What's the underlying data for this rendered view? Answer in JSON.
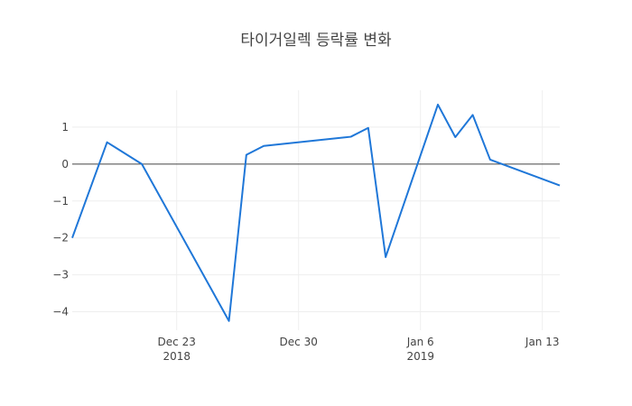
{
  "chart_data": {
    "type": "line",
    "title": "타이거일렉 등락률 변화",
    "x_axis": {
      "kind": "date",
      "range": [
        "2018-12-17",
        "2019-01-14"
      ],
      "ticks": [
        {
          "date": "2018-12-23",
          "label": "Dec 23",
          "sublabel": "2018"
        },
        {
          "date": "2018-12-30",
          "label": "Dec 30",
          "sublabel": ""
        },
        {
          "date": "2019-01-06",
          "label": "Jan 6",
          "sublabel": "2019"
        },
        {
          "date": "2019-01-13",
          "label": "Jan 13",
          "sublabel": ""
        }
      ]
    },
    "y_axis": {
      "range": [
        -4.5,
        2.0
      ],
      "ticks": [
        {
          "value": 1,
          "label": "1"
        },
        {
          "value": 0,
          "label": "0"
        },
        {
          "value": -1,
          "label": "−1"
        },
        {
          "value": -2,
          "label": "−2"
        },
        {
          "value": -3,
          "label": "−3"
        },
        {
          "value": -4,
          "label": "−4"
        }
      ],
      "zeroline": true
    },
    "grid": true,
    "series": [
      {
        "color": "#1f77d8",
        "points": [
          {
            "x": "2018-12-17",
            "y": -2.0
          },
          {
            "x": "2018-12-19",
            "y": 0.59
          },
          {
            "x": "2018-12-21",
            "y": 0.0
          },
          {
            "x": "2018-12-26",
            "y": -4.25
          },
          {
            "x": "2018-12-27",
            "y": 0.25
          },
          {
            "x": "2018-12-28",
            "y": 0.49
          },
          {
            "x": "2019-01-02",
            "y": 0.74
          },
          {
            "x": "2019-01-03",
            "y": 0.98
          },
          {
            "x": "2019-01-04",
            "y": -2.52
          },
          {
            "x": "2019-01-07",
            "y": 1.61
          },
          {
            "x": "2019-01-08",
            "y": 0.73
          },
          {
            "x": "2019-01-09",
            "y": 1.33
          },
          {
            "x": "2019-01-10",
            "y": 0.12
          },
          {
            "x": "2019-01-14",
            "y": -0.58
          }
        ]
      }
    ]
  }
}
